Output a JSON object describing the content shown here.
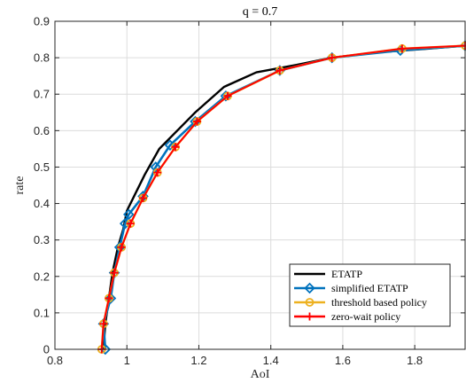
{
  "chart_data": {
    "type": "line",
    "title": "q = 0.7",
    "xlabel": "AoI",
    "ylabel": "rate",
    "xlim": [
      0.8,
      1.94
    ],
    "ylim": [
      0,
      0.9
    ],
    "xticks": [
      "0.8",
      "1",
      "1.2",
      "1.4",
      "1.6",
      "1.8"
    ],
    "xtick_values": [
      0.8,
      1.0,
      1.2,
      1.4,
      1.6,
      1.8
    ],
    "yticks": [
      "0",
      "0.1",
      "0.2",
      "0.3",
      "0.4",
      "0.5",
      "0.6",
      "0.7",
      "0.8",
      "0.9"
    ],
    "ytick_values": [
      0,
      0.1,
      0.2,
      0.3,
      0.4,
      0.5,
      0.6,
      0.7,
      0.8,
      0.9
    ],
    "grid": true,
    "legend_position": "bottom-right",
    "series": [
      {
        "name": "ETATP",
        "color": "#000000",
        "marker": "none",
        "x": [
          0.935,
          0.94,
          0.95,
          0.96,
          0.975,
          0.99,
          1.0,
          1.02,
          1.05,
          1.09,
          1.14,
          1.19,
          1.27,
          1.36,
          1.47,
          1.57,
          1.7,
          1.84,
          1.94
        ],
        "y": [
          0.0,
          0.07,
          0.14,
          0.21,
          0.28,
          0.33,
          0.38,
          0.42,
          0.48,
          0.55,
          0.6,
          0.65,
          0.72,
          0.76,
          0.78,
          0.8,
          0.815,
          0.825,
          0.833
        ]
      },
      {
        "name": "simplified ETATP",
        "color": "#0072BD",
        "marker": "diamond",
        "x": [
          0.94,
          0.935,
          0.955,
          0.965,
          0.98,
          0.995,
          1.005,
          1.045,
          1.08,
          1.12,
          1.19,
          1.275,
          1.425,
          1.57,
          1.76,
          1.94
        ],
        "y": [
          0.0,
          0.07,
          0.14,
          0.21,
          0.28,
          0.345,
          0.37,
          0.42,
          0.5,
          0.56,
          0.625,
          0.695,
          0.765,
          0.8,
          0.82,
          0.833
        ]
      },
      {
        "name": "threshold based policy",
        "color": "#EDB120",
        "marker": "circle",
        "x": [
          0.93,
          0.935,
          0.95,
          0.965,
          0.985,
          1.01,
          1.045,
          1.085,
          1.135,
          1.195,
          1.28,
          1.425,
          1.57,
          1.765,
          1.94
        ],
        "y": [
          0.0,
          0.07,
          0.14,
          0.21,
          0.28,
          0.345,
          0.415,
          0.485,
          0.555,
          0.625,
          0.695,
          0.765,
          0.8,
          0.825,
          0.833
        ]
      },
      {
        "name": "zero-wait policy",
        "color": "#FF0000",
        "marker": "plus",
        "x": [
          0.93,
          0.935,
          0.95,
          0.965,
          0.985,
          1.01,
          1.045,
          1.085,
          1.135,
          1.195,
          1.28,
          1.425,
          1.57,
          1.765,
          1.94
        ],
        "y": [
          0.0,
          0.07,
          0.14,
          0.21,
          0.28,
          0.345,
          0.415,
          0.485,
          0.555,
          0.625,
          0.695,
          0.765,
          0.8,
          0.825,
          0.833
        ]
      }
    ]
  }
}
